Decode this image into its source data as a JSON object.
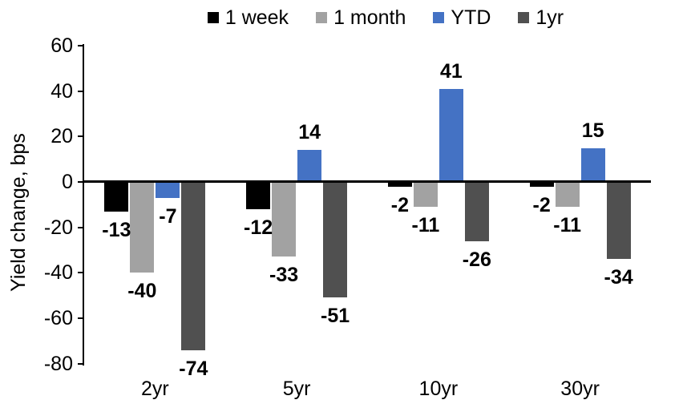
{
  "chart_data": {
    "type": "bar",
    "title": "",
    "ylabel": "Yield change, bps",
    "xlabel": "",
    "categories": [
      "2yr",
      "5yr",
      "10yr",
      "30yr"
    ],
    "series": [
      {
        "name": "1 week",
        "color": "#000000",
        "values": [
          -13,
          -12,
          -2,
          -2
        ]
      },
      {
        "name": "1 month",
        "color": "#A2A2A2",
        "values": [
          -40,
          -33,
          -11,
          -11
        ]
      },
      {
        "name": "YTD",
        "color": "#4472C4",
        "values": [
          -7,
          14,
          41,
          15
        ]
      },
      {
        "name": "1yr",
        "color": "#505050",
        "values": [
          -74,
          -51,
          -26,
          -34
        ]
      }
    ],
    "data_labels": true,
    "ylim": [
      -80,
      60
    ],
    "ytick_step": 20,
    "grid": "off",
    "legend_position": "top",
    "axis_color": "#000000"
  }
}
